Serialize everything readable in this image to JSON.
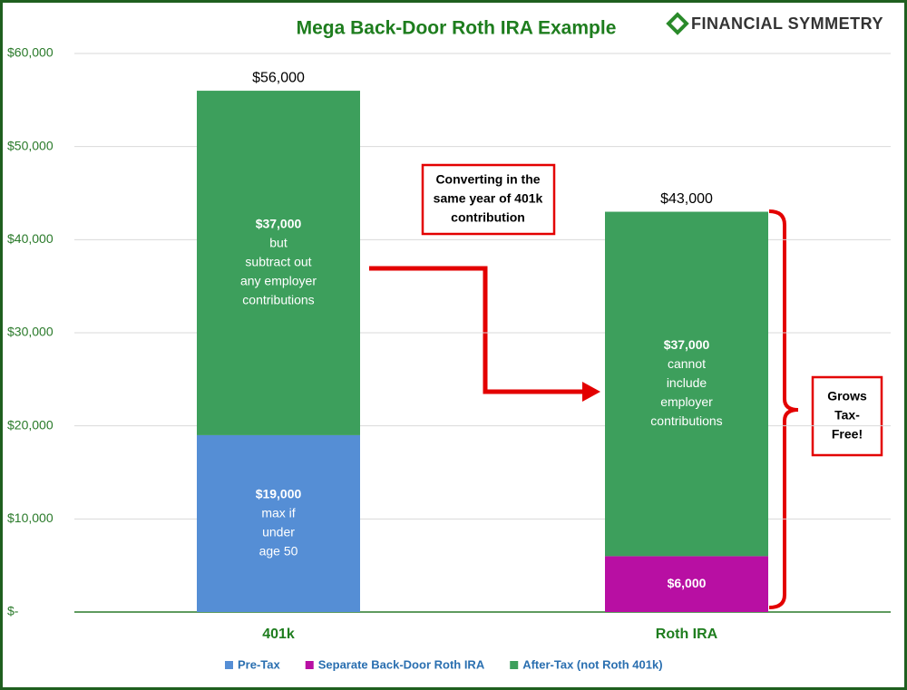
{
  "chart_data": {
    "type": "stacked_bar",
    "title": "Mega Back-Door Roth IRA Example",
    "logo": "FINANCIAL SYMMETRY",
    "categories": [
      "401k",
      "Roth IRA"
    ],
    "series": [
      {
        "name": "Pre-Tax",
        "color": "#558ed5",
        "values": [
          19000,
          null
        ],
        "value_labels": [
          "$19,000",
          null
        ],
        "notes": [
          [
            "max if",
            "under",
            "age 50"
          ],
          null
        ]
      },
      {
        "name": "Separate Back-Door Roth IRA",
        "color": "#b80fa3",
        "values": [
          null,
          6000
        ],
        "value_labels": [
          null,
          "$6,000"
        ],
        "notes": [
          null,
          null
        ]
      },
      {
        "name": "After-Tax (not Roth 401k)",
        "color": "#3d9f5c",
        "values": [
          37000,
          37000
        ],
        "value_labels": [
          "$37,000",
          "$37,000"
        ],
        "notes": [
          [
            "but",
            "subtract out",
            "any  employer",
            "contributions"
          ],
          [
            "cannot",
            "include",
            "employer",
            "contributions"
          ]
        ]
      }
    ],
    "total_labels": [
      "$56,000",
      "$43,000"
    ],
    "ylim": [
      0,
      60000
    ],
    "yticks": [
      {
        "value": 0,
        "label": "$-"
      },
      {
        "value": 10000,
        "label": "$10,000"
      },
      {
        "value": 20000,
        "label": "$20,000"
      },
      {
        "value": 30000,
        "label": "$30,000"
      },
      {
        "value": 40000,
        "label": "$40,000"
      },
      {
        "value": 50000,
        "label": "$50,000"
      },
      {
        "value": 60000,
        "label": "$60,000"
      }
    ],
    "grid": true,
    "legend": "bottom",
    "annotations": [
      {
        "lines": [
          "Converting in the",
          "same year of 401k",
          "contribution"
        ]
      },
      {
        "lines": [
          "Grows",
          "Tax-",
          "Free!"
        ]
      }
    ]
  }
}
